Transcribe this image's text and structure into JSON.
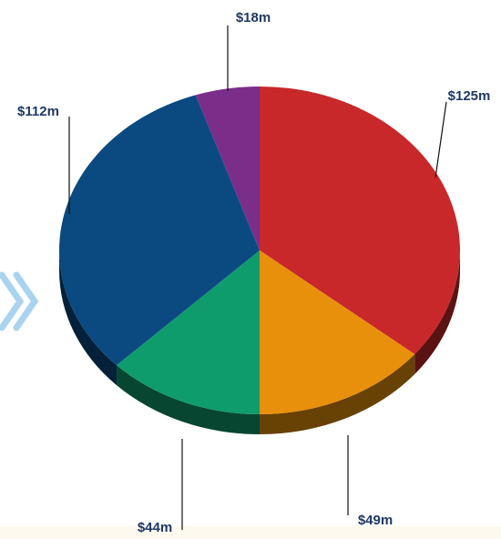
{
  "chart_data": {
    "type": "pie",
    "categories": [
      null,
      null,
      null,
      null,
      null
    ],
    "values": [
      125,
      49,
      44,
      112,
      18
    ],
    "value_labels": [
      "$125m",
      "$49m",
      "$44m",
      "$112m",
      "$18m"
    ],
    "colors": [
      "#c8282a",
      "#e8900c",
      "#0f9c6c",
      "#0b4a80",
      "#7b2d8a"
    ]
  }
}
